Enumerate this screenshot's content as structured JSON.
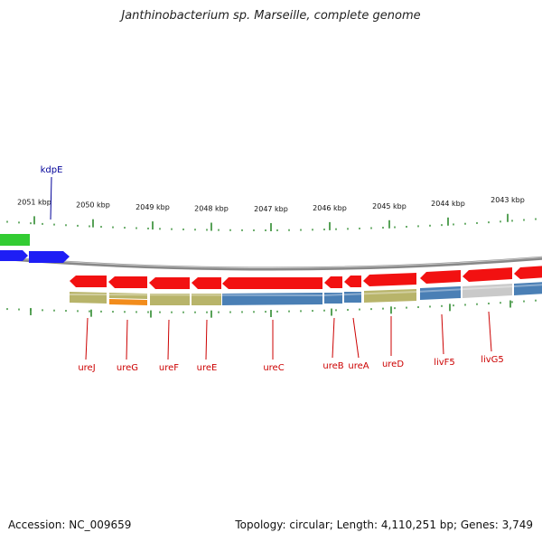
{
  "title": "Janthinobacterium sp. Marseille, complete genome",
  "footer": {
    "accession": "Accession: NC_009659",
    "summary": "Topology: circular; Length: 4,110,251 bp; Genes: 3,749"
  },
  "colors": {
    "background": "#ffffff",
    "backbone": "#888888",
    "tick": "#2e8b2e",
    "gene_label": "#cc0000",
    "top_label": "#000099",
    "cds_forward": "#1e1ef5",
    "cds_green": "#33cc33",
    "cds_reverse": "#f21111",
    "feature_olive": "#b8b46a",
    "feature_blue": "#4a7fb5",
    "feature_orange": "#f28c1c",
    "feature_grey": "#c9c9c9"
  },
  "ticks": [
    "2051 kbp",
    "2050 kbp",
    "2049 kbp",
    "2048 kbp",
    "2047 kbp",
    "2046 kbp",
    "2045 kbp",
    "2044 kbp",
    "2043 kbp"
  ],
  "top_genes": [
    "kdpE"
  ],
  "bottom_genes": [
    "ureJ",
    "ureG",
    "ureF",
    "ureE",
    "ureC",
    "ureB",
    "ureA",
    "ureD",
    "livF5",
    "livG5"
  ]
}
